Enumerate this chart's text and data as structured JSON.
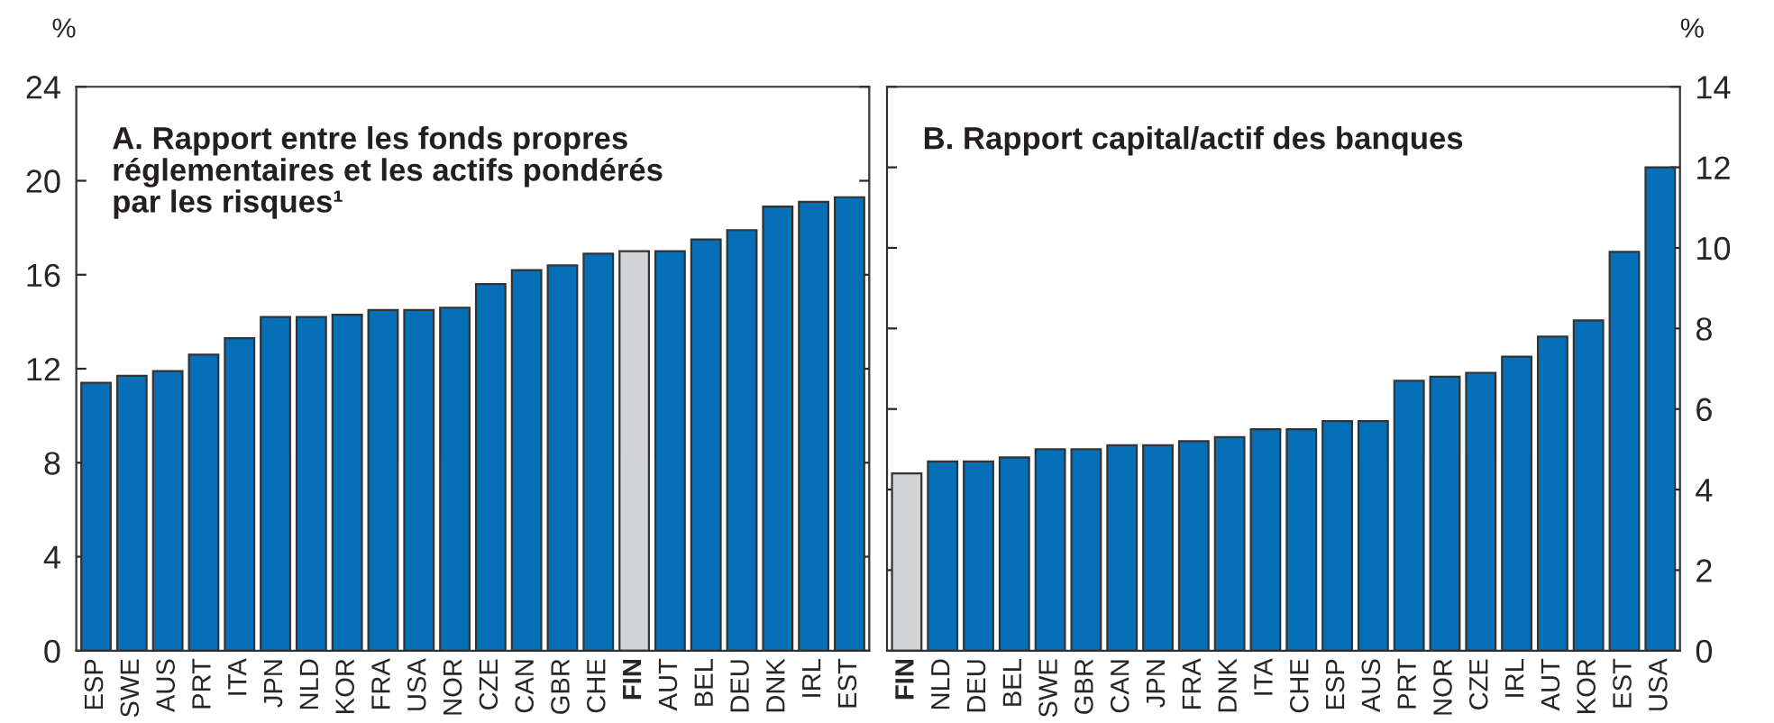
{
  "chart_data": [
    {
      "type": "bar",
      "title": "A. Rapport entre les fonds propres\nréglementaires et les actifs pondérés\npar les risques¹",
      "ylabel": "%",
      "categories": [
        "ESP",
        "SWE",
        "AUS",
        "PRT",
        "ITA",
        "JPN",
        "NLD",
        "KOR",
        "FRA",
        "USA",
        "NOR",
        "CZE",
        "CAN",
        "GBR",
        "CHE",
        "FIN",
        "AUT",
        "BEL",
        "DEU",
        "DNK",
        "IRL",
        "EST"
      ],
      "values": [
        11.4,
        11.7,
        11.9,
        12.6,
        13.3,
        14.2,
        14.2,
        14.3,
        14.5,
        14.5,
        14.6,
        15.6,
        16.2,
        16.4,
        16.9,
        17.0,
        17.0,
        17.5,
        17.9,
        18.9,
        19.1,
        19.3
      ],
      "colors": [
        "#0570b8",
        "#0570b8",
        "#0570b8",
        "#0570b8",
        "#0570b8",
        "#0570b8",
        "#0570b8",
        "#0570b8",
        "#0570b8",
        "#0570b8",
        "#0570b8",
        "#0570b8",
        "#0570b8",
        "#0570b8",
        "#0570b8",
        "#d2d3d5",
        "#0570b8",
        "#0570b8",
        "#0570b8",
        "#0570b8",
        "#0570b8",
        "#0570b8"
      ],
      "ylim": [
        0,
        24
      ],
      "yticks": [
        0,
        4,
        8,
        12,
        16,
        20,
        24
      ],
      "grid": false,
      "legend": false
    },
    {
      "type": "bar",
      "title": "B. Rapport capital/actif des banques",
      "y2label": "%",
      "categories": [
        "FIN",
        "NLD",
        "DEU",
        "BEL",
        "SWE",
        "GBR",
        "CAN",
        "JPN",
        "FRA",
        "DNK",
        "ITA",
        "CHE",
        "ESP",
        "AUS",
        "PRT",
        "NOR",
        "CZE",
        "IRL",
        "AUT",
        "KOR",
        "EST",
        "USA"
      ],
      "series": [
        {
          "axis": "y2",
          "values": [
            4.4,
            4.7,
            4.7,
            4.8,
            5.0,
            5.0,
            5.1,
            5.1,
            5.2,
            5.3,
            5.5,
            5.5,
            5.7,
            5.7,
            6.7,
            6.8,
            6.9,
            7.3,
            7.8,
            8.2,
            9.9,
            12.0
          ]
        }
      ],
      "colors": [
        "#d2d3d5",
        "#0570b8",
        "#0570b8",
        "#0570b8",
        "#0570b8",
        "#0570b8",
        "#0570b8",
        "#0570b8",
        "#0570b8",
        "#0570b8",
        "#0570b8",
        "#0570b8",
        "#0570b8",
        "#0570b8",
        "#0570b8",
        "#0570b8",
        "#0570b8",
        "#0570b8",
        "#0570b8",
        "#0570b8",
        "#0570b8",
        "#0570b8"
      ],
      "y2lim": [
        0,
        14
      ],
      "y2ticks": [
        0,
        2,
        4,
        6,
        8,
        10,
        12,
        14
      ],
      "grid": false,
      "legend": false
    }
  ]
}
